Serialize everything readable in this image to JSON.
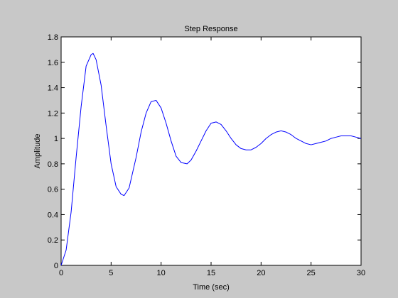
{
  "chart_data": {
    "type": "line",
    "title": "Step Response",
    "xlabel": "Time (sec)",
    "ylabel": "Amplitude",
    "xlim": [
      0,
      30
    ],
    "ylim": [
      0,
      1.8
    ],
    "grid": false,
    "x_ticks": [
      "0",
      "5",
      "10",
      "15",
      "20",
      "25",
      "30"
    ],
    "y_ticks": [
      "0",
      "0.2",
      "0.4",
      "0.6",
      "0.8",
      "1",
      "1.2",
      "1.4",
      "1.6",
      "1.8"
    ],
    "series": [
      {
        "color": "#0000ff",
        "x": [
          0,
          0.5,
          1,
          1.5,
          2,
          2.5,
          3,
          3.2,
          3.5,
          4,
          4.5,
          5,
          5.5,
          6,
          6.3,
          6.8,
          7.5,
          8,
          8.5,
          9,
          9.5,
          10,
          10.5,
          11,
          11.5,
          12,
          12.6,
          13,
          13.5,
          14,
          14.5,
          15,
          15.5,
          16,
          16.5,
          17,
          17.5,
          18,
          18.5,
          19,
          19.5,
          20,
          20.5,
          21,
          21.5,
          22,
          22.5,
          23,
          23.5,
          24,
          24.5,
          25,
          25.5,
          26,
          26.5,
          27,
          27.5,
          28,
          28.5,
          29,
          29.5,
          30
        ],
        "y": [
          0,
          0.12,
          0.42,
          0.85,
          1.25,
          1.57,
          1.66,
          1.67,
          1.62,
          1.42,
          1.1,
          0.8,
          0.62,
          0.56,
          0.55,
          0.61,
          0.85,
          1.05,
          1.2,
          1.29,
          1.3,
          1.24,
          1.12,
          0.98,
          0.86,
          0.81,
          0.8,
          0.83,
          0.9,
          0.98,
          1.06,
          1.12,
          1.13,
          1.11,
          1.06,
          1.0,
          0.95,
          0.92,
          0.91,
          0.91,
          0.93,
          0.96,
          1.0,
          1.03,
          1.05,
          1.06,
          1.05,
          1.03,
          1.0,
          0.98,
          0.96,
          0.95,
          0.96,
          0.97,
          0.98,
          1.0,
          1.01,
          1.02,
          1.02,
          1.02,
          1.01,
          1.0
        ]
      }
    ]
  }
}
